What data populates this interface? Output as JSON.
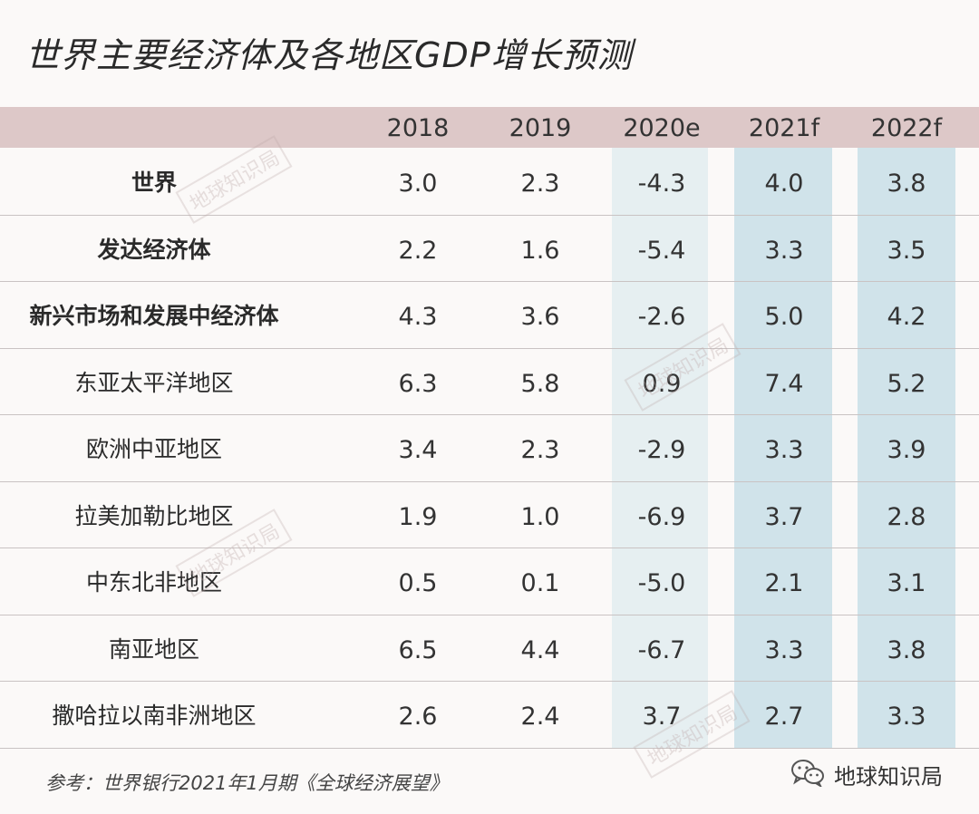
{
  "title": "世界主要经济体及各地区GDP增长预测",
  "source": "参考：世界银行2021年1月期《全球经济展望》",
  "brand": "地球知识局",
  "watermark": "地球知识局",
  "icon": "wechat-icon",
  "colors": {
    "header_band": "#ddc8c8",
    "band_2020e": "#e6eff1",
    "band_forecast": "#d0e3ea"
  },
  "chart_data": {
    "type": "table",
    "title": "世界主要经济体及各地区GDP增长预测",
    "columns": [
      "2018",
      "2019",
      "2020e",
      "2021f",
      "2022f"
    ],
    "rows": [
      {
        "name": "世界",
        "bold": true,
        "values": [
          "3.0",
          "2.3",
          "-4.3",
          "4.0",
          "3.8"
        ]
      },
      {
        "name": "发达经济体",
        "bold": true,
        "values": [
          "2.2",
          "1.6",
          "-5.4",
          "3.3",
          "3.5"
        ]
      },
      {
        "name": "新兴市场和发展中经济体",
        "bold": true,
        "values": [
          "4.3",
          "3.6",
          "-2.6",
          "5.0",
          "4.2"
        ]
      },
      {
        "name": "东亚太平洋地区",
        "bold": false,
        "values": [
          "6.3",
          "5.8",
          "0.9",
          "7.4",
          "5.2"
        ]
      },
      {
        "name": "欧洲中亚地区",
        "bold": false,
        "values": [
          "3.4",
          "2.3",
          "-2.9",
          "3.3",
          "3.9"
        ]
      },
      {
        "name": "拉美加勒比地区",
        "bold": false,
        "values": [
          "1.9",
          "1.0",
          "-6.9",
          "3.7",
          "2.8"
        ]
      },
      {
        "name": "中东北非地区",
        "bold": false,
        "values": [
          "0.5",
          "0.1",
          "-5.0",
          "2.1",
          "3.1"
        ]
      },
      {
        "name": "南亚地区",
        "bold": false,
        "values": [
          "6.5",
          "4.4",
          "-6.7",
          "3.3",
          "3.8"
        ]
      },
      {
        "name": "撒哈拉以南非洲地区",
        "bold": false,
        "values": [
          "2.6",
          "2.4",
          "3.7",
          "2.7",
          "3.3"
        ]
      }
    ]
  }
}
